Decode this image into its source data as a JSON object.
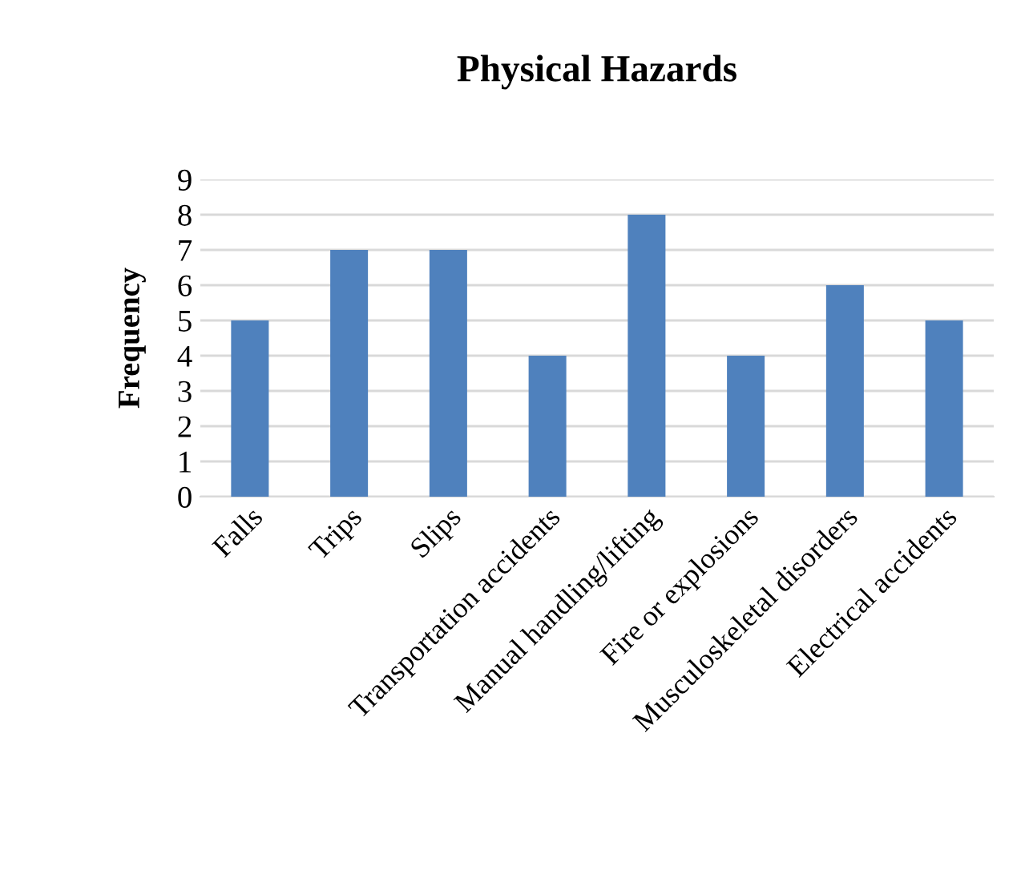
{
  "chart_data": {
    "type": "bar",
    "title": "Physical Hazards",
    "ylabel": "Frequency",
    "categories": [
      "Falls",
      "Trips",
      "Slips",
      "Transportation accidents",
      "Manual handling/lifting",
      "Fire or explosions",
      "Musculoskeletal disorders",
      "Electrical accidents"
    ],
    "values": [
      5,
      7,
      7,
      4,
      8,
      4,
      6,
      5
    ],
    "color": "#4f81bd",
    "ylim": [
      0,
      9
    ],
    "yticks": [
      0,
      1,
      2,
      3,
      4,
      5,
      6,
      7,
      8,
      9
    ],
    "grid": "y",
    "legend": false
  }
}
